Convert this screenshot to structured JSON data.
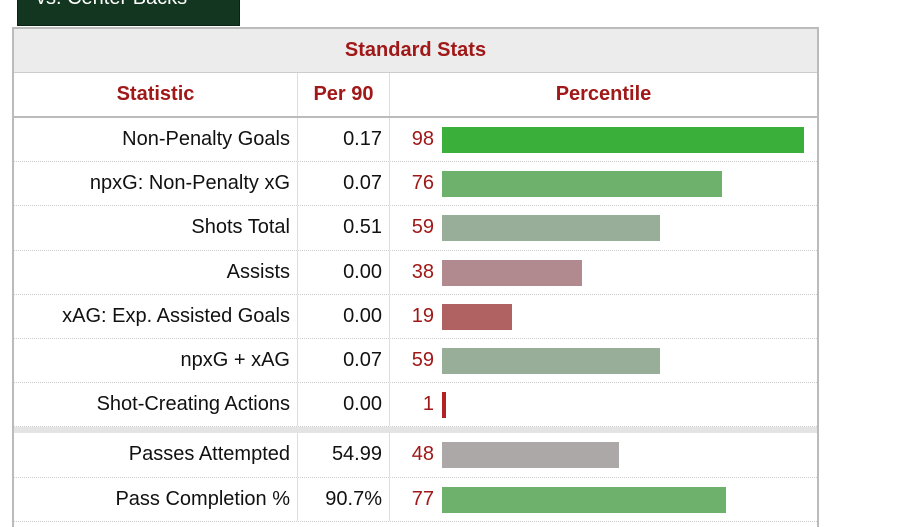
{
  "tab": "vs. Center Backs",
  "table": {
    "title": "Standard Stats",
    "headers": [
      "Statistic",
      "Per 90",
      "Percentile"
    ],
    "percentile_max": 100,
    "sections": [
      [
        {
          "statistic": "Non-Penalty Goals",
          "per90": "0.17",
          "percentile": 98,
          "color": "#3aaf3a"
        },
        {
          "statistic": "npxG: Non-Penalty xG",
          "per90": "0.07",
          "percentile": 76,
          "color": "#6db16d"
        },
        {
          "statistic": "Shots Total",
          "per90": "0.51",
          "percentile": 59,
          "color": "#98ae98"
        },
        {
          "statistic": "Assists",
          "per90": "0.00",
          "percentile": 38,
          "color": "#b08a8e"
        },
        {
          "statistic": "xAG: Exp. Assisted Goals",
          "per90": "0.00",
          "percentile": 19,
          "color": "#b06262"
        },
        {
          "statistic": "npxG + xAG",
          "per90": "0.07",
          "percentile": 59,
          "color": "#98ae98"
        },
        {
          "statistic": "Shot-Creating Actions",
          "per90": "0.00",
          "percentile": 1,
          "color": "#b22222"
        }
      ],
      [
        {
          "statistic": "Passes Attempted",
          "per90": "54.99",
          "percentile": 48,
          "color": "#aca8a8"
        },
        {
          "statistic": "Pass Completion %",
          "per90": "90.7%",
          "percentile": 77,
          "color": "#6db16d"
        }
      ]
    ]
  }
}
